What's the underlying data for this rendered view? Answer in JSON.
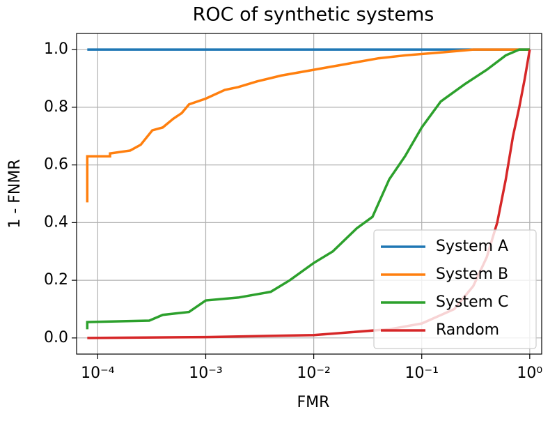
{
  "chart_data": {
    "type": "line",
    "title": "ROC of synthetic systems",
    "x_label": "FMR",
    "y_label": "1 - FNMR",
    "xscale": "log",
    "grid": true,
    "legend": "lower right",
    "xlim": [
      6.37e-05,
      1.29
    ],
    "ylim": [
      -0.056,
      1.056
    ],
    "xticks": [
      {
        "value": 0.0001,
        "label": "10⁻⁴"
      },
      {
        "value": 0.001,
        "label": "10⁻³"
      },
      {
        "value": 0.01,
        "label": "10⁻²"
      },
      {
        "value": 0.1,
        "label": "10⁻¹"
      },
      {
        "value": 1,
        "label": "10⁰"
      }
    ],
    "yticks": [
      {
        "value": 0,
        "label": "0.0"
      },
      0.2,
      0.4,
      0.6,
      0.8,
      {
        "value": 1,
        "label": "1.0"
      }
    ],
    "series": [
      {
        "name": "System A",
        "color": "#1f77b4",
        "x": [
          8e-05,
          1
        ],
        "values": [
          1,
          1
        ]
      },
      {
        "name": "System B",
        "color": "#ff7f0e",
        "x": [
          8e-05,
          8e-05,
          0.00013,
          0.00013,
          0.0002,
          0.00025,
          0.00032,
          0.0004,
          0.0005,
          0.0006,
          0.0007,
          0.001,
          0.0015,
          0.002,
          0.003,
          0.005,
          0.01,
          0.02,
          0.04,
          0.07,
          0.15,
          0.3,
          1
        ],
        "values": [
          0.47,
          0.63,
          0.63,
          0.64,
          0.65,
          0.67,
          0.72,
          0.73,
          0.76,
          0.78,
          0.81,
          0.83,
          0.86,
          0.87,
          0.89,
          0.91,
          0.93,
          0.95,
          0.97,
          0.98,
          0.99,
          1.0,
          1.0
        ]
      },
      {
        "name": "System C",
        "color": "#2ca02c",
        "x": [
          8e-05,
          8e-05,
          0.0003,
          0.0004,
          0.0007,
          0.001,
          0.002,
          0.004,
          0.006,
          0.01,
          0.015,
          0.025,
          0.035,
          0.05,
          0.07,
          0.1,
          0.15,
          0.25,
          0.4,
          0.6,
          0.8,
          1
        ],
        "values": [
          0.03,
          0.055,
          0.06,
          0.08,
          0.09,
          0.13,
          0.14,
          0.16,
          0.2,
          0.26,
          0.3,
          0.38,
          0.42,
          0.55,
          0.63,
          0.73,
          0.82,
          0.88,
          0.93,
          0.98,
          1.0,
          1.0
        ]
      },
      {
        "name": "Random",
        "color": "#d62728",
        "x": [
          8e-05,
          0.001,
          0.01,
          0.05,
          0.1,
          0.2,
          0.3,
          0.4,
          0.5,
          0.6,
          0.7,
          0.8,
          0.9,
          1
        ],
        "values": [
          0,
          0.003,
          0.01,
          0.03,
          0.05,
          0.1,
          0.18,
          0.28,
          0.4,
          0.55,
          0.7,
          0.8,
          0.9,
          1
        ]
      }
    ]
  }
}
